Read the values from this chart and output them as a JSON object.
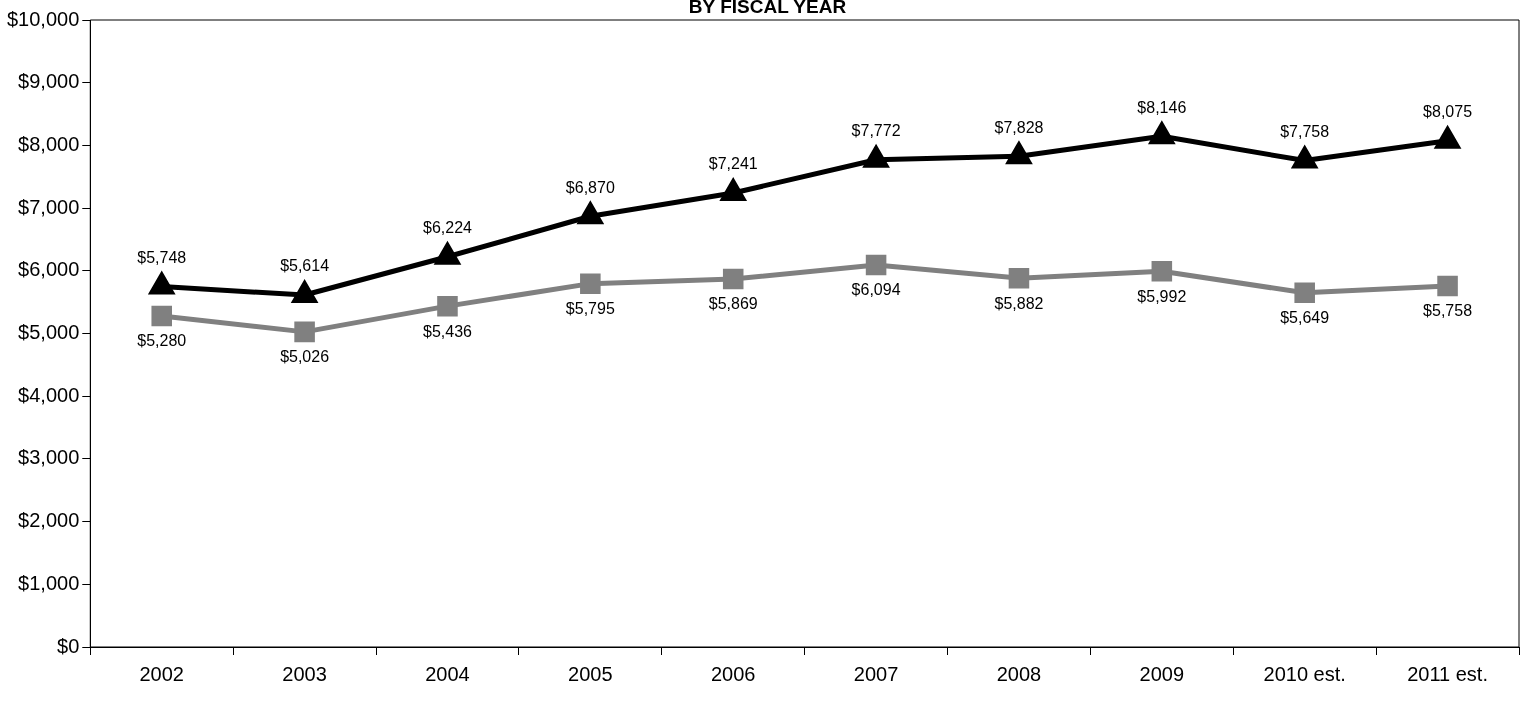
{
  "chart_data": {
    "type": "line",
    "title": "BY FISCAL YEAR",
    "categories": [
      "2002",
      "2003",
      "2004",
      "2005",
      "2006",
      "2007",
      "2008",
      "2009",
      "2010 est.",
      "2011 est."
    ],
    "series": [
      {
        "color": "#000000",
        "marker": "triangle",
        "values": [
          5748,
          5614,
          6224,
          6870,
          7241,
          7772,
          7828,
          8146,
          7758,
          8075
        ],
        "value_labels": [
          "$5,748",
          "$5,614",
          "$6,224",
          "$6,870",
          "$7,241",
          "$7,772",
          "$7,828",
          "$8,146",
          "$7,758",
          "$8,075"
        ]
      },
      {
        "color": "#808080",
        "marker": "square",
        "values": [
          5280,
          5026,
          5436,
          5795,
          5869,
          6094,
          5882,
          5992,
          5649,
          5758
        ],
        "value_labels": [
          "$5,280",
          "$5,026",
          "$5,436",
          "$5,795",
          "$5,869",
          "$6,094",
          "$5,882",
          "$5,992",
          "$5,649",
          "$5,758"
        ]
      }
    ],
    "ylim": [
      0,
      10000
    ],
    "yticks": [
      {
        "value": 0,
        "label": "$0"
      },
      {
        "value": 1000,
        "label": "$1,000"
      },
      {
        "value": 2000,
        "label": "$2,000"
      },
      {
        "value": 3000,
        "label": "$3,000"
      },
      {
        "value": 4000,
        "label": "$4,000"
      },
      {
        "value": 5000,
        "label": "$5,000"
      },
      {
        "value": 6000,
        "label": "$6,000"
      },
      {
        "value": 7000,
        "label": "$7,000"
      },
      {
        "value": 8000,
        "label": "$8,000"
      },
      {
        "value": 9000,
        "label": "$9,000"
      },
      {
        "value": 10000,
        "label": "$10,000"
      }
    ],
    "grid": false,
    "legend": false,
    "line_style": "solid"
  }
}
